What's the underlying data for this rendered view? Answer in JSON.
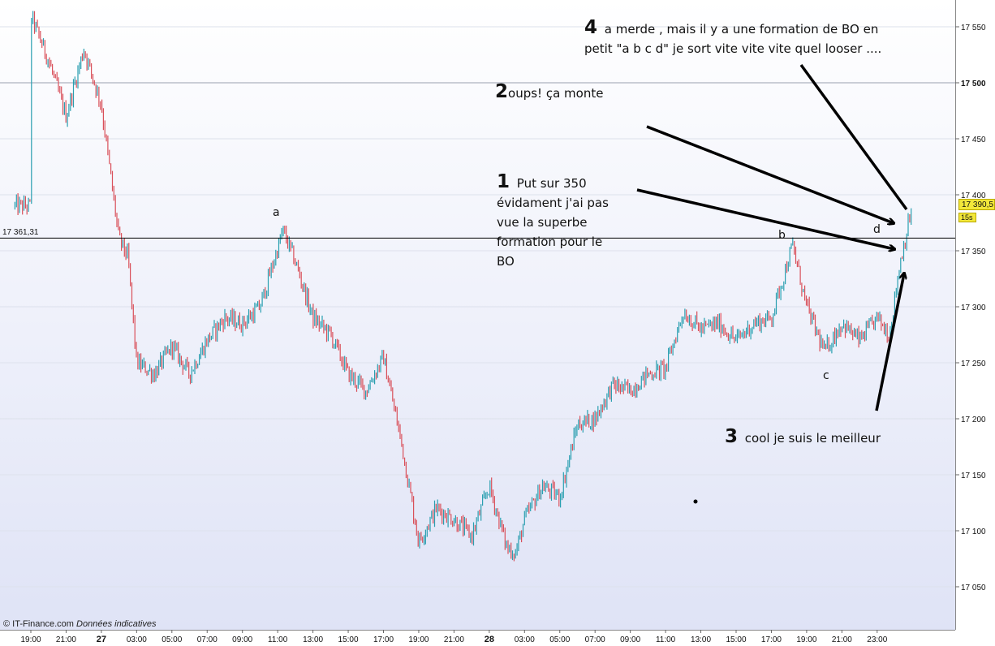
{
  "chart_data": {
    "type": "candlestick",
    "x_ticks": [
      "19:00",
      "21:00",
      "27",
      "03:00",
      "05:00",
      "07:00",
      "09:00",
      "11:00",
      "13:00",
      "15:00",
      "17:00",
      "19:00",
      "21:00",
      "28",
      "03:00",
      "05:00",
      "07:00",
      "09:00",
      "11:00",
      "13:00",
      "15:00",
      "17:00",
      "19:00",
      "21:00",
      "23:00"
    ],
    "y_ticks": [
      {
        "label": "17 550",
        "value": 17550,
        "bold": false
      },
      {
        "label": "17 500",
        "value": 17500,
        "bold": true
      },
      {
        "label": "17 450",
        "value": 17450,
        "bold": false
      },
      {
        "label": "17 400",
        "value": 17400,
        "bold": false
      },
      {
        "label": "17 350",
        "value": 17350,
        "bold": false
      },
      {
        "label": "17 300",
        "value": 17300,
        "bold": false
      },
      {
        "label": "17 250",
        "value": 17250,
        "bold": false
      },
      {
        "label": "17 200",
        "value": 17200,
        "bold": false
      },
      {
        "label": "17 150",
        "value": 17150,
        "bold": false
      },
      {
        "label": "17 100",
        "value": 17100,
        "bold": false
      },
      {
        "label": "17 050",
        "value": 17050,
        "bold": false
      }
    ],
    "ylim": [
      17030,
      17575
    ],
    "reference_line": {
      "value": 17361.31,
      "label": "17 361,31"
    },
    "current_price": {
      "label": "17 390,5",
      "timeframe": "15s"
    },
    "up_color": "#2a9fb0",
    "down_color": "#d9505a",
    "price_path": [
      [
        0,
        17560
      ],
      [
        1,
        17520
      ],
      [
        2,
        17470
      ],
      [
        3,
        17530
      ],
      [
        4,
        17480
      ],
      [
        5,
        17360
      ],
      [
        5.5,
        17345
      ],
      [
        6.0,
        17250
      ],
      [
        7,
        17240
      ],
      [
        8,
        17265
      ],
      [
        9,
        17240
      ],
      [
        10,
        17270
      ],
      [
        11,
        17290
      ],
      [
        12,
        17285
      ],
      [
        13,
        17300
      ],
      [
        14.3,
        17368
      ],
      [
        15,
        17340
      ],
      [
        16,
        17290
      ],
      [
        17,
        17275
      ],
      [
        18,
        17240
      ],
      [
        19,
        17225
      ],
      [
        20,
        17255
      ],
      [
        21,
        17180
      ],
      [
        22,
        17090
      ],
      [
        23,
        17120
      ],
      [
        24,
        17110
      ],
      [
        25,
        17095
      ],
      [
        26,
        17140
      ],
      [
        27,
        17085
      ],
      [
        27.5,
        17080
      ],
      [
        28.0,
        17110
      ],
      [
        29,
        17140
      ],
      [
        30,
        17130
      ],
      [
        31,
        17195
      ],
      [
        32,
        17200
      ],
      [
        33,
        17230
      ],
      [
        34,
        17225
      ],
      [
        35,
        17240
      ],
      [
        36,
        17245
      ],
      [
        37,
        17295
      ],
      [
        38,
        17280
      ],
      [
        39,
        17285
      ],
      [
        40,
        17270
      ],
      [
        41,
        17285
      ],
      [
        42,
        17290
      ],
      [
        43.2,
        17355
      ],
      [
        44,
        17300
      ],
      [
        45,
        17260
      ],
      [
        46,
        17285
      ],
      [
        47,
        17270
      ],
      [
        48,
        17290
      ],
      [
        48.7,
        17275
      ],
      [
        49.3,
        17340
      ],
      [
        50.0,
        17390
      ]
    ]
  },
  "annotations": [
    {
      "num": "1",
      "lines": [
        "Put sur 350",
        "évidament j'ai pas",
        "vue la superbe",
        "formation pour le",
        "BO"
      ]
    },
    {
      "num": "2",
      "lines": [
        "oups!  ça monte"
      ]
    },
    {
      "num": "3",
      "lines": [
        "cool je suis le meilleur"
      ]
    },
    {
      "num": "4",
      "lines": [
        "a merde , mais il  y a une formation de BO en",
        "petit \"a b c d\"  je sort vite vite vite quel looser ...."
      ]
    }
  ],
  "point_labels": {
    "a": "a",
    "b": "b",
    "c": "c",
    "d": "d"
  },
  "footer": {
    "brand": "© IT-Finance.com",
    "note": "Données indicatives"
  }
}
